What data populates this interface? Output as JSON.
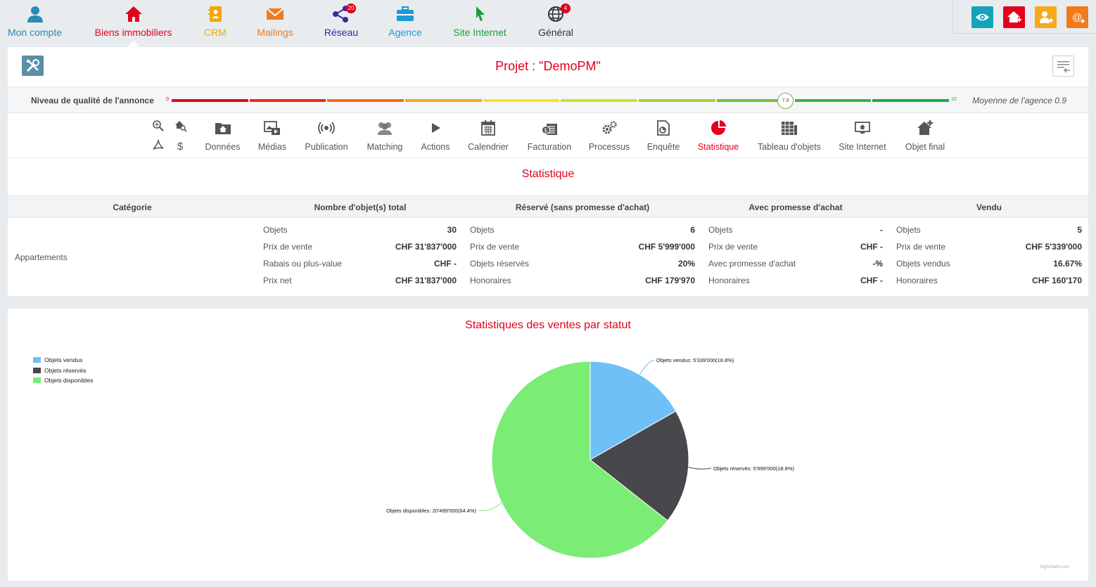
{
  "nav": {
    "items": [
      {
        "key": "compte",
        "label": "Mon compte",
        "color": "#2a8cb0"
      },
      {
        "key": "biens",
        "label": "Biens immobiliers",
        "color": "#e3001b"
      },
      {
        "key": "crm",
        "label": "CRM",
        "color": "#f2a705"
      },
      {
        "key": "mailings",
        "label": "Mailings",
        "color": "#f07a1c"
      },
      {
        "key": "reseau",
        "label": "Réseau",
        "color": "#3a2a9a",
        "badge": "20"
      },
      {
        "key": "agence",
        "label": "Agence",
        "color": "#1a9bd7"
      },
      {
        "key": "site",
        "label": "Site Internet",
        "color": "#1a9e3a"
      },
      {
        "key": "general",
        "label": "Général",
        "color": "#333333",
        "badge": "4"
      }
    ],
    "active": "biens"
  },
  "quick_actions": [
    {
      "icon": "eye-icon",
      "color": "#14a3b8"
    },
    {
      "icon": "add-property-icon",
      "color": "#e3001b"
    },
    {
      "icon": "add-contact-icon",
      "color": "#f7a81b"
    },
    {
      "icon": "new-mail-icon",
      "color": "#f07a1c"
    }
  ],
  "project": {
    "title": "Projet : \"DemoPM\""
  },
  "quality": {
    "label": "Niveau de qualité de l'annonce",
    "min": "0",
    "max": "10",
    "value": "7.9",
    "average": "Moyenne de l'agence 0.9"
  },
  "tabs": [
    {
      "key": "donnees",
      "label": "Données"
    },
    {
      "key": "medias",
      "label": "Médias"
    },
    {
      "key": "publication",
      "label": "Publication"
    },
    {
      "key": "matching",
      "label": "Matching"
    },
    {
      "key": "actions",
      "label": "Actions"
    },
    {
      "key": "calendrier",
      "label": "Calendrier"
    },
    {
      "key": "facturation",
      "label": "Facturation"
    },
    {
      "key": "processus",
      "label": "Processus"
    },
    {
      "key": "enquete",
      "label": "Enquête"
    },
    {
      "key": "statistique",
      "label": "Statistique"
    },
    {
      "key": "tableau",
      "label": "Tableau d'objets"
    },
    {
      "key": "siteweb",
      "label": "Site Internet"
    },
    {
      "key": "objetfinal",
      "label": "Objet final"
    }
  ],
  "active_tab": "statistique",
  "statistics": {
    "title": "Statistique",
    "headers": [
      "Catégorie",
      "Nombre d'objet(s) total",
      "Réservé (sans promesse d'achat)",
      "Avec promesse d'achat",
      "Vendu"
    ],
    "category": "Appartements",
    "columns": [
      {
        "rows": [
          [
            "Objets",
            "30"
          ],
          [
            "Prix de vente",
            "CHF 31'837'000"
          ],
          [
            "Rabais ou plus-value",
            "CHF -"
          ],
          [
            "Prix net",
            "CHF 31'837'000"
          ]
        ]
      },
      {
        "rows": [
          [
            "Objets",
            "6"
          ],
          [
            "Prix de vente",
            "CHF 5'999'000"
          ],
          [
            "Objets réservés",
            "20%"
          ],
          [
            "Honoraires",
            "CHF 179'970"
          ]
        ]
      },
      {
        "rows": [
          [
            "Objets",
            "-"
          ],
          [
            "Prix de vente",
            "CHF -"
          ],
          [
            "Avec promesse d'achat",
            "-%"
          ],
          [
            "Honoraires",
            "CHF -"
          ]
        ]
      },
      {
        "rows": [
          [
            "Objets",
            "5"
          ],
          [
            "Prix de vente",
            "CHF 5'339'000"
          ],
          [
            "Objets vendus",
            "16.67%"
          ],
          [
            "Honoraires",
            "CHF 160'170"
          ]
        ]
      }
    ]
  },
  "chart_data": {
    "type": "pie",
    "title": "Statistiques des ventes par statut",
    "legend_position": "top-left",
    "slices": [
      {
        "name": "Objets vendus",
        "value": 5339000,
        "percent": 16.8,
        "label": "Objets vendus: 5'339'000(16.8%)",
        "color": "#6ec0f7"
      },
      {
        "name": "Objets réservés",
        "value": 5999000,
        "percent": 18.8,
        "label": "Objets réservés: 5'999'000(18.8%)",
        "color": "#48484c"
      },
      {
        "name": "Objets disponibles",
        "value": 20499000,
        "percent": 64.4,
        "label": "Objets disponibles: 20'499'000(64.4%)",
        "color": "#7bec74"
      }
    ],
    "credits": "Highcharts.com"
  }
}
